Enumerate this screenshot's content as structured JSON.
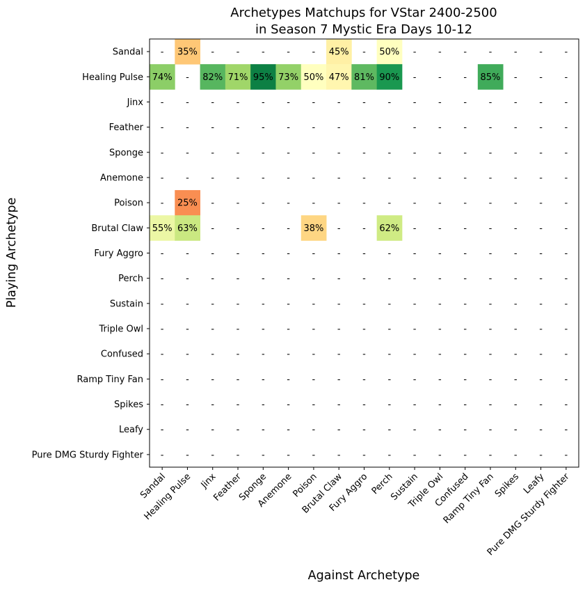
{
  "chart_data": {
    "type": "heatmap",
    "title_lines": [
      "Archetypes Matchups for VStar 2400-2500",
      "in Season 7 Mystic Era Days 10-12"
    ],
    "xlabel": "Against Archetype",
    "ylabel": "Playing Archetype",
    "x_categories": [
      "Sandal",
      "Healing Pulse",
      "Jinx",
      "Feather",
      "Sponge",
      "Anemone",
      "Poison",
      "Brutal Claw",
      "Fury Aggro",
      "Perch",
      "Sustain",
      "Triple Owl",
      "Confused",
      "Ramp Tiny Fan",
      "Spikes",
      "Leafy",
      "Pure DMG Sturdy Fighter"
    ],
    "y_categories": [
      "Sandal",
      "Healing Pulse",
      "Jinx",
      "Feather",
      "Sponge",
      "Anemone",
      "Poison",
      "Brutal Claw",
      "Fury Aggro",
      "Perch",
      "Sustain",
      "Triple Owl",
      "Confused",
      "Ramp Tiny Fan",
      "Spikes",
      "Leafy",
      "Pure DMG Sturdy Fighter"
    ],
    "missing_label": "-",
    "value_suffix": "%",
    "colormap": "RdYlGn",
    "vmin": 0,
    "vmax": 100,
    "grid": false,
    "values": [
      [
        null,
        35,
        null,
        null,
        null,
        null,
        null,
        45,
        null,
        50,
        null,
        null,
        null,
        null,
        null,
        null,
        null
      ],
      [
        74,
        null,
        82,
        71,
        95,
        73,
        50,
        47,
        81,
        90,
        null,
        null,
        null,
        85,
        null,
        null,
        null
      ],
      [
        null,
        null,
        null,
        null,
        null,
        null,
        null,
        null,
        null,
        null,
        null,
        null,
        null,
        null,
        null,
        null,
        null
      ],
      [
        null,
        null,
        null,
        null,
        null,
        null,
        null,
        null,
        null,
        null,
        null,
        null,
        null,
        null,
        null,
        null,
        null
      ],
      [
        null,
        null,
        null,
        null,
        null,
        null,
        null,
        null,
        null,
        null,
        null,
        null,
        null,
        null,
        null,
        null,
        null
      ],
      [
        null,
        null,
        null,
        null,
        null,
        null,
        null,
        null,
        null,
        null,
        null,
        null,
        null,
        null,
        null,
        null,
        null
      ],
      [
        null,
        25,
        null,
        null,
        null,
        null,
        null,
        null,
        null,
        null,
        null,
        null,
        null,
        null,
        null,
        null,
        null
      ],
      [
        55,
        63,
        null,
        null,
        null,
        null,
        38,
        null,
        null,
        62,
        null,
        null,
        null,
        null,
        null,
        null,
        null
      ],
      [
        null,
        null,
        null,
        null,
        null,
        null,
        null,
        null,
        null,
        null,
        null,
        null,
        null,
        null,
        null,
        null,
        null
      ],
      [
        null,
        null,
        null,
        null,
        null,
        null,
        null,
        null,
        null,
        null,
        null,
        null,
        null,
        null,
        null,
        null,
        null
      ],
      [
        null,
        null,
        null,
        null,
        null,
        null,
        null,
        null,
        null,
        null,
        null,
        null,
        null,
        null,
        null,
        null,
        null
      ],
      [
        null,
        null,
        null,
        null,
        null,
        null,
        null,
        null,
        null,
        null,
        null,
        null,
        null,
        null,
        null,
        null,
        null
      ],
      [
        null,
        null,
        null,
        null,
        null,
        null,
        null,
        null,
        null,
        null,
        null,
        null,
        null,
        null,
        null,
        null,
        null
      ],
      [
        null,
        null,
        null,
        null,
        null,
        null,
        null,
        null,
        null,
        null,
        null,
        null,
        null,
        null,
        null,
        null,
        null
      ],
      [
        null,
        null,
        null,
        null,
        null,
        null,
        null,
        null,
        null,
        null,
        null,
        null,
        null,
        null,
        null,
        null,
        null
      ],
      [
        null,
        null,
        null,
        null,
        null,
        null,
        null,
        null,
        null,
        null,
        null,
        null,
        null,
        null,
        null,
        null,
        null
      ],
      [
        null,
        null,
        null,
        null,
        null,
        null,
        null,
        null,
        null,
        null,
        null,
        null,
        null,
        null,
        null,
        null,
        null
      ]
    ]
  }
}
